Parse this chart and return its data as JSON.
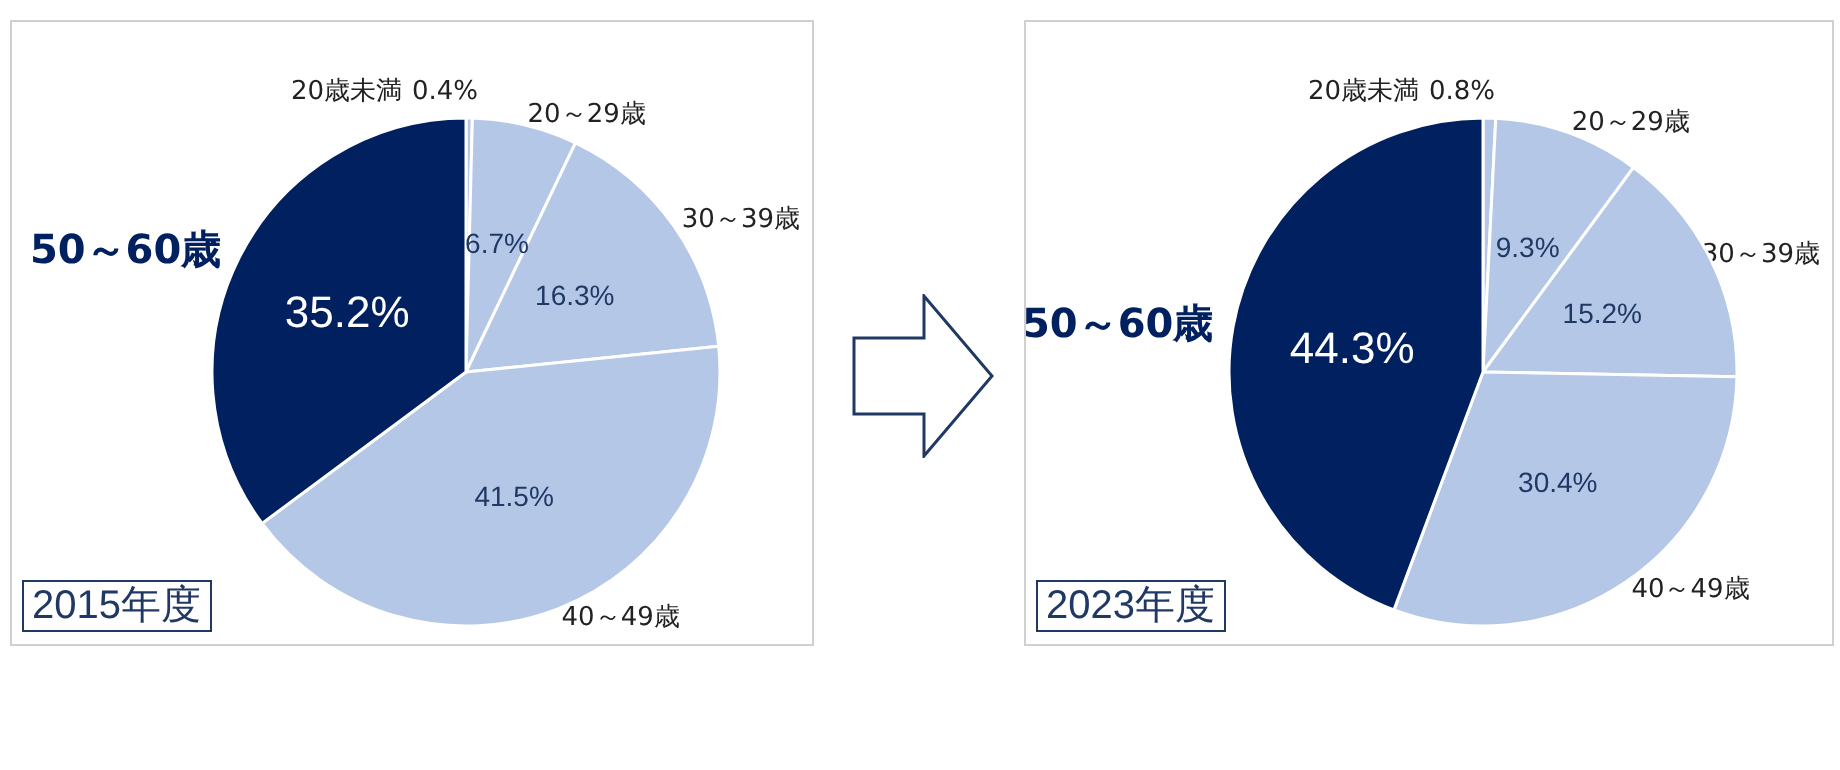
{
  "chart_data": [
    {
      "type": "pie",
      "title": "2015年度",
      "categories": [
        "20歳未満",
        "20～29歳",
        "30～39歳",
        "40～49歳",
        "50～60歳"
      ],
      "values": [
        0.4,
        6.7,
        16.3,
        41.5,
        35.2
      ],
      "colors": [
        "#b4c7e7",
        "#b4c7e7",
        "#b4c7e7",
        "#b4c7e7",
        "#002060"
      ],
      "value_labels": [
        "0.4%",
        "6.7%",
        "16.3%",
        "41.5%",
        "35.2%"
      ],
      "legend": false
    },
    {
      "type": "pie",
      "title": "2023年度",
      "categories": [
        "20歳未満",
        "20～29歳",
        "30～39歳",
        "40～49歳",
        "50～60歳"
      ],
      "values": [
        0.8,
        9.3,
        15.2,
        30.4,
        44.3
      ],
      "colors": [
        "#b4c7e7",
        "#b4c7e7",
        "#b4c7e7",
        "#b4c7e7",
        "#002060"
      ],
      "value_labels": [
        "0.8%",
        "9.3%",
        "15.2%",
        "30.4%",
        "44.3%"
      ],
      "legend": false
    }
  ]
}
